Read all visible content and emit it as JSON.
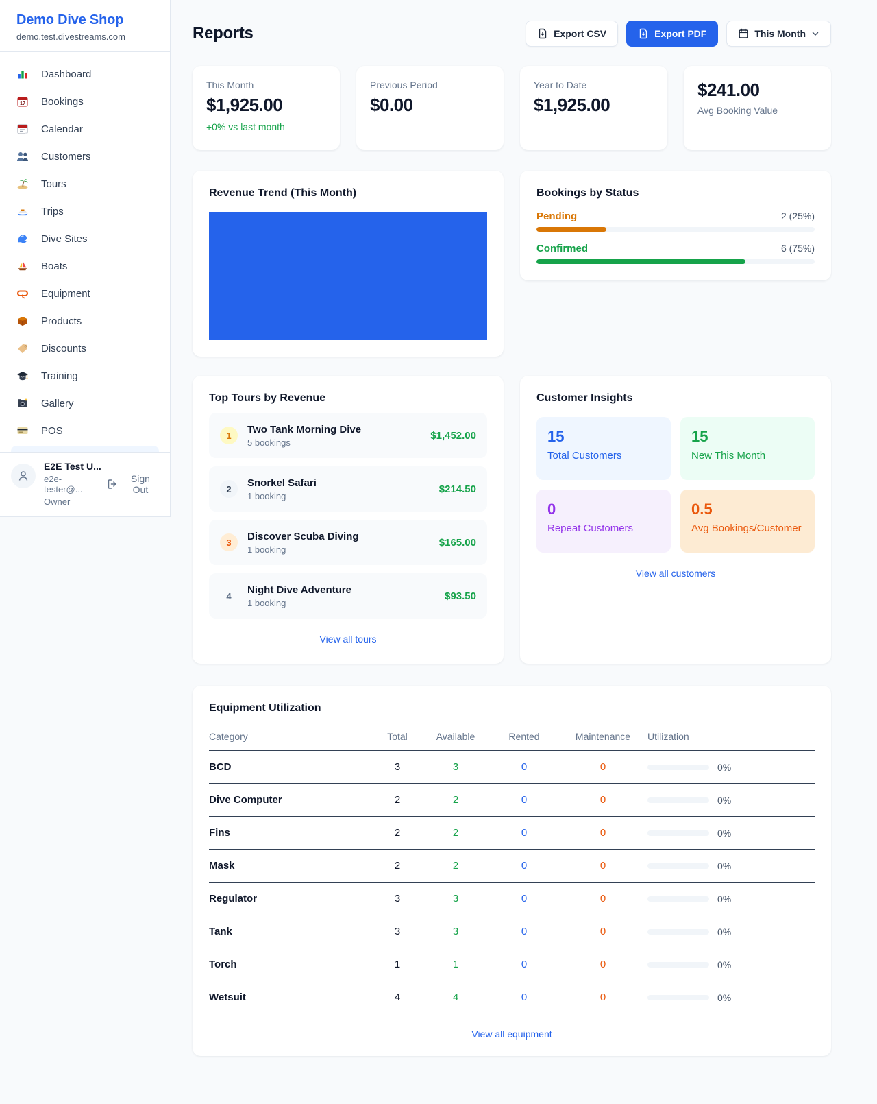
{
  "colors": {
    "accent_blue": "#2563eb",
    "green": "#16a34a",
    "pending_orange": "#d97706",
    "maintenance_orange": "#ea580c",
    "purple": "#9333ea",
    "page_bg": "#f8fafc"
  },
  "sidebar": {
    "brand": {
      "name": "Demo Dive Shop",
      "domain": "demo.test.divestreams.com"
    },
    "nav": [
      {
        "icon": "bar-chart",
        "label": "Dashboard"
      },
      {
        "icon": "calendar-date",
        "label": "Bookings"
      },
      {
        "icon": "tear-off-calendar",
        "label": "Calendar"
      },
      {
        "icon": "people",
        "label": "Customers"
      },
      {
        "icon": "island",
        "label": "Tours"
      },
      {
        "icon": "speedboat",
        "label": "Trips"
      },
      {
        "icon": "wave",
        "label": "Dive Sites"
      },
      {
        "icon": "sailboat",
        "label": "Boats"
      },
      {
        "icon": "dive-mask",
        "label": "Equipment"
      },
      {
        "icon": "package",
        "label": "Products"
      },
      {
        "icon": "tag",
        "label": "Discounts"
      },
      {
        "icon": "graduation-cap",
        "label": "Training"
      },
      {
        "icon": "camera",
        "label": "Gallery"
      },
      {
        "icon": "credit-card",
        "label": "POS"
      }
    ],
    "user": {
      "name": "E2E Test U...",
      "email": "e2e-tester@...",
      "role": "Owner",
      "sign_out_label": "Sign Out"
    }
  },
  "header": {
    "title": "Reports",
    "export_csv_label": "Export CSV",
    "export_pdf_label": "Export PDF",
    "period_label": "This Month"
  },
  "stats": {
    "cards": [
      {
        "label": "This Month",
        "value": "$1,925.00",
        "delta": "+0% vs last month"
      },
      {
        "label": "Previous Period",
        "value": "$0.00"
      },
      {
        "label": "Year to Date",
        "value": "$1,925.00"
      },
      {
        "label": "Avg Booking Value",
        "value": "$241.00"
      }
    ]
  },
  "revenue_trend": {
    "title": "Revenue Trend (This Month)",
    "chart_data": {
      "type": "bar",
      "categories": [
        "This Month"
      ],
      "values": [
        1925
      ],
      "bar_color": "#2563eb",
      "note": "single bar filling entire plot area"
    }
  },
  "bookings_by_status": {
    "title": "Bookings by Status",
    "rows": [
      {
        "label": "Pending",
        "count_label": "2 (25%)",
        "count": 2,
        "pct": 25
      },
      {
        "label": "Confirmed",
        "count_label": "6 (75%)",
        "count": 6,
        "pct": 75
      }
    ]
  },
  "top_tours": {
    "title": "Top Tours by Revenue",
    "rows": [
      {
        "rank": "1",
        "name": "Two Tank Morning Dive",
        "bookings": "5 bookings",
        "amount": "$1,452.00"
      },
      {
        "rank": "2",
        "name": "Snorkel Safari",
        "bookings": "1 booking",
        "amount": "$214.50"
      },
      {
        "rank": "3",
        "name": "Discover Scuba Diving",
        "bookings": "1 booking",
        "amount": "$165.00"
      },
      {
        "rank": "4",
        "name": "Night Dive Adventure",
        "bookings": "1 booking",
        "amount": "$93.50"
      }
    ],
    "link": "View all tours"
  },
  "customer_insights": {
    "title": "Customer Insights",
    "tiles": [
      {
        "value": "15",
        "label": "Total Customers"
      },
      {
        "value": "15",
        "label": "New This Month"
      },
      {
        "value": "0",
        "label": "Repeat Customers"
      },
      {
        "value": "0.5",
        "label": "Avg Bookings/Customer"
      }
    ],
    "link": "View all customers"
  },
  "equipment": {
    "title": "Equipment Utilization",
    "columns": [
      "Category",
      "Total",
      "Available",
      "Rented",
      "Maintenance",
      "Utilization"
    ],
    "rows": [
      {
        "category": "BCD",
        "total": "3",
        "available": "3",
        "rented": "0",
        "maintenance": "0",
        "utilization_pct": 0,
        "utilization_label": "0%"
      },
      {
        "category": "Dive Computer",
        "total": "2",
        "available": "2",
        "rented": "0",
        "maintenance": "0",
        "utilization_pct": 0,
        "utilization_label": "0%"
      },
      {
        "category": "Fins",
        "total": "2",
        "available": "2",
        "rented": "0",
        "maintenance": "0",
        "utilization_pct": 0,
        "utilization_label": "0%"
      },
      {
        "category": "Mask",
        "total": "2",
        "available": "2",
        "rented": "0",
        "maintenance": "0",
        "utilization_pct": 0,
        "utilization_label": "0%"
      },
      {
        "category": "Regulator",
        "total": "3",
        "available": "3",
        "rented": "0",
        "maintenance": "0",
        "utilization_pct": 0,
        "utilization_label": "0%"
      },
      {
        "category": "Tank",
        "total": "3",
        "available": "3",
        "rented": "0",
        "maintenance": "0",
        "utilization_pct": 0,
        "utilization_label": "0%"
      },
      {
        "category": "Torch",
        "total": "1",
        "available": "1",
        "rented": "0",
        "maintenance": "0",
        "utilization_pct": 0,
        "utilization_label": "0%"
      },
      {
        "category": "Wetsuit",
        "total": "4",
        "available": "4",
        "rented": "0",
        "maintenance": "0",
        "utilization_pct": 0,
        "utilization_label": "0%"
      }
    ],
    "link": "View all equipment"
  }
}
